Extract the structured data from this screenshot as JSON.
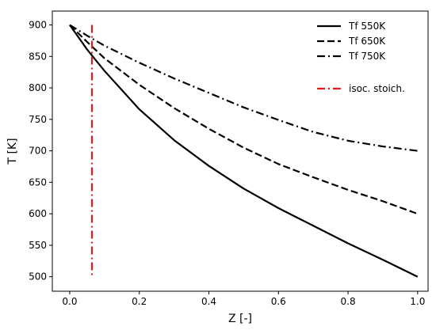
{
  "chart_data": {
    "type": "line",
    "xlabel": "Z [-]",
    "ylabel": "T [K]",
    "xlim": [
      -0.05,
      1.03
    ],
    "ylim": [
      477,
      922
    ],
    "x_ticks": [
      0.0,
      0.2,
      0.4,
      0.6,
      0.8,
      1.0
    ],
    "x_tick_labels": [
      "0.0",
      "0.2",
      "0.4",
      "0.6",
      "0.8",
      "1.0"
    ],
    "y_ticks": [
      500,
      550,
      600,
      650,
      700,
      750,
      800,
      850,
      900
    ],
    "y_tick_labels": [
      "500",
      "550",
      "600",
      "650",
      "700",
      "750",
      "800",
      "850",
      "900"
    ],
    "grid": false,
    "legend_position": "top-right",
    "series": [
      {
        "name": "Tf 550K",
        "style": "solid",
        "color": "#000000",
        "x": [
          0.0,
          0.05,
          0.1,
          0.2,
          0.3,
          0.4,
          0.5,
          0.6,
          0.7,
          0.8,
          0.9,
          1.0
        ],
        "y": [
          900,
          861,
          827,
          766,
          717,
          676,
          640,
          609,
          581,
          553,
          527,
          500
        ]
      },
      {
        "name": "Tf 650K",
        "style": "dashed",
        "color": "#000000",
        "x": [
          0.0,
          0.05,
          0.1,
          0.2,
          0.3,
          0.4,
          0.5,
          0.6,
          0.7,
          0.8,
          0.9,
          1.0
        ],
        "y": [
          900,
          873,
          847,
          805,
          768,
          735,
          705,
          679,
          658,
          638,
          620,
          600
        ]
      },
      {
        "name": "Tf 750K",
        "style": "dashdot",
        "color": "#000000",
        "x": [
          0.0,
          0.05,
          0.1,
          0.2,
          0.3,
          0.4,
          0.5,
          0.6,
          0.7,
          0.8,
          0.9,
          1.0
        ],
        "y": [
          900,
          883,
          867,
          840,
          815,
          792,
          769,
          749,
          730,
          716,
          707,
          700
        ]
      },
      {
        "name": "isoc. stoich.",
        "style": "dashdot",
        "color": "#e41a1c",
        "x": [
          0.064,
          0.064
        ],
        "y": [
          900,
          500
        ]
      }
    ]
  }
}
